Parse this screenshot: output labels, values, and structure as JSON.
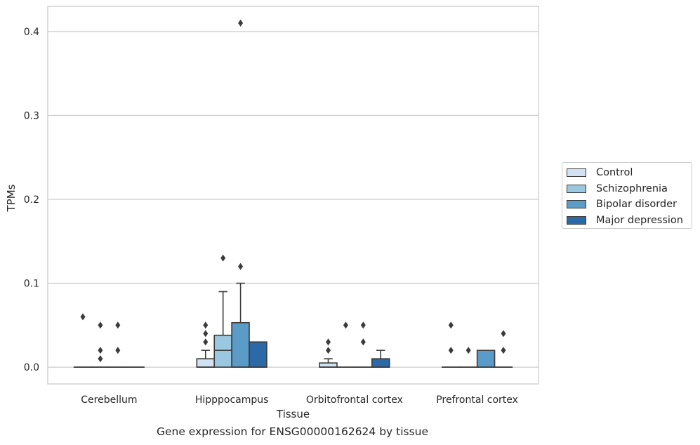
{
  "chart_data": {
    "type": "box",
    "xlabel": "Tissue",
    "ylabel": "TPMs",
    "caption": "Gene expression for ENSG00000162624 by tissue",
    "ylim": [
      -0.02,
      0.43
    ],
    "yticks": [
      0.0,
      0.1,
      0.2,
      0.3,
      0.4
    ],
    "ytick_labels": [
      "0.0",
      "0.1",
      "0.2",
      "0.3",
      "0.4"
    ],
    "categories": [
      "Cerebellum",
      "Hipppocampus",
      "Orbitofrontal cortex",
      "Prefrontal cortex"
    ],
    "grid": "horizontal",
    "legend_position": "right",
    "series": [
      {
        "name": "Control",
        "color": "#d1e2f2",
        "boxes": [
          {
            "q1": 0,
            "median": 0,
            "q3": 0,
            "whislo": 0,
            "whishi": 0,
            "fliers": [
              0.06
            ]
          },
          {
            "q1": 0,
            "median": 0,
            "q3": 0.01,
            "whislo": 0,
            "whishi": 0.02,
            "fliers": [
              0.03,
              0.04,
              0.05
            ]
          },
          {
            "q1": 0,
            "median": 0,
            "q3": 0.005,
            "whislo": 0,
            "whishi": 0.01,
            "fliers": [
              0.02,
              0.03
            ]
          },
          {
            "q1": 0,
            "median": 0,
            "q3": 0,
            "whislo": 0,
            "whishi": 0,
            "fliers": [
              0.02,
              0.05
            ]
          }
        ]
      },
      {
        "name": "Schizophrenia",
        "color": "#9ac8e0",
        "boxes": [
          {
            "q1": 0,
            "median": 0,
            "q3": 0,
            "whislo": 0,
            "whishi": 0,
            "fliers": [
              0.01,
              0.02,
              0.05
            ]
          },
          {
            "q1": 0,
            "median": 0.02,
            "q3": 0.038,
            "whislo": 0,
            "whishi": 0.09,
            "fliers": [
              0.13
            ]
          },
          {
            "q1": 0,
            "median": 0,
            "q3": 0,
            "whislo": 0,
            "whishi": 0,
            "fliers": [
              0.05
            ]
          },
          {
            "q1": 0,
            "median": 0,
            "q3": 0,
            "whislo": 0,
            "whishi": 0,
            "fliers": [
              0.02
            ]
          }
        ]
      },
      {
        "name": "Bipolar disorder",
        "color": "#5a9bc7",
        "boxes": [
          {
            "q1": 0,
            "median": 0,
            "q3": 0,
            "whislo": 0,
            "whishi": 0,
            "fliers": [
              0.02,
              0.05
            ]
          },
          {
            "q1": 0,
            "median": 0,
            "q3": 0.053,
            "whislo": 0,
            "whishi": 0.1,
            "fliers": [
              0.12,
              0.41
            ]
          },
          {
            "q1": 0,
            "median": 0,
            "q3": 0,
            "whislo": 0,
            "whishi": 0,
            "fliers": [
              0.03,
              0.05
            ]
          },
          {
            "q1": 0,
            "median": 0,
            "q3": 0.02,
            "whislo": 0,
            "whishi": 0.02,
            "fliers": []
          }
        ]
      },
      {
        "name": "Major depression",
        "color": "#2b6aa7",
        "boxes": [
          {
            "q1": 0,
            "median": 0,
            "q3": 0,
            "whislo": 0,
            "whishi": 0,
            "fliers": []
          },
          {
            "q1": 0,
            "median": 0,
            "q3": 0.03,
            "whislo": 0,
            "whishi": 0.03,
            "fliers": []
          },
          {
            "q1": 0,
            "median": 0,
            "q3": 0.01,
            "whislo": 0,
            "whishi": 0.02,
            "fliers": []
          },
          {
            "q1": 0,
            "median": 0,
            "q3": 0,
            "whislo": 0,
            "whishi": 0,
            "fliers": [
              0.02,
              0.04
            ]
          }
        ]
      }
    ]
  }
}
